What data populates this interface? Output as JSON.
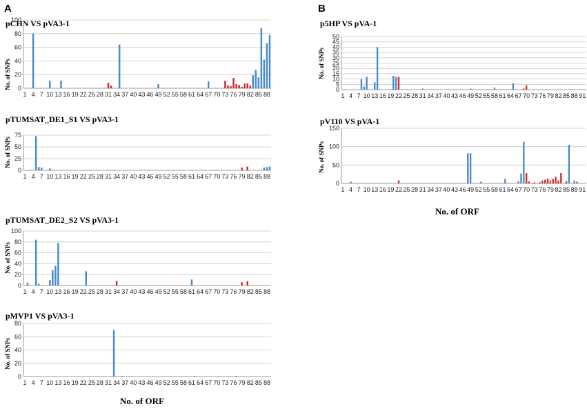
{
  "panel_labels": {
    "A": "A",
    "B": "B"
  },
  "x_axis_title": "No. of ORF",
  "colors": {
    "blue": "#4a8bc9",
    "red": "#d12a2a",
    "grid": "#c8c8c8"
  },
  "chart_data": [
    {
      "type": "bar",
      "title": "pCHN VS pVA3-1",
      "ylabel": "No. of SNPs",
      "ylim": [
        0,
        100
      ],
      "yticks": [
        0,
        20,
        40,
        60,
        80,
        100
      ],
      "xtick_labels": [
        "1",
        "4",
        "7",
        "10",
        "13",
        "16",
        "19",
        "22",
        "25",
        "28",
        "31",
        "34",
        "37",
        "40",
        "43",
        "46",
        "49",
        "52",
        "55",
        "58",
        "61",
        "64",
        "67",
        "70",
        "73",
        "76",
        "79",
        "82",
        "85",
        "88"
      ],
      "n_orf": 89,
      "bars": [
        {
          "orf": 4,
          "value": 80,
          "color": "blue"
        },
        {
          "orf": 10,
          "value": 11,
          "color": "blue"
        },
        {
          "orf": 14,
          "value": 11,
          "color": "blue"
        },
        {
          "orf": 30,
          "value": 1,
          "color": "blue"
        },
        {
          "orf": 31,
          "value": 8,
          "color": "red"
        },
        {
          "orf": 32,
          "value": 4,
          "color": "red"
        },
        {
          "orf": 35,
          "value": 64,
          "color": "blue"
        },
        {
          "orf": 49,
          "value": 6,
          "color": "blue"
        },
        {
          "orf": 67,
          "value": 10,
          "color": "blue"
        },
        {
          "orf": 73,
          "value": 11,
          "color": "red"
        },
        {
          "orf": 74,
          "value": 4,
          "color": "red"
        },
        {
          "orf": 75,
          "value": 3,
          "color": "red"
        },
        {
          "orf": 76,
          "value": 15,
          "color": "red"
        },
        {
          "orf": 77,
          "value": 6,
          "color": "red"
        },
        {
          "orf": 78,
          "value": 5,
          "color": "red"
        },
        {
          "orf": 79,
          "value": 2,
          "color": "red"
        },
        {
          "orf": 80,
          "value": 7,
          "color": "red"
        },
        {
          "orf": 81,
          "value": 7,
          "color": "red"
        },
        {
          "orf": 82,
          "value": 4,
          "color": "red"
        },
        {
          "orf": 83,
          "value": 19,
          "color": "blue"
        },
        {
          "orf": 84,
          "value": 27,
          "color": "blue"
        },
        {
          "orf": 85,
          "value": 16,
          "color": "blue"
        },
        {
          "orf": 86,
          "value": 88,
          "color": "blue"
        },
        {
          "orf": 87,
          "value": 42,
          "color": "blue"
        },
        {
          "orf": 88,
          "value": 66,
          "color": "blue"
        },
        {
          "orf": 89,
          "value": 78,
          "color": "blue"
        }
      ]
    },
    {
      "type": "bar",
      "title": "pTUMSAT_DE1_S1 VS pVA3-1",
      "ylabel": "No. of SNPs",
      "ylim": [
        0,
        75
      ],
      "yticks": [
        0,
        25,
        50,
        75
      ],
      "xtick_labels": [
        "1",
        "4",
        "7",
        "10",
        "13",
        "16",
        "19",
        "22",
        "25",
        "28",
        "31",
        "34",
        "37",
        "40",
        "43",
        "46",
        "49",
        "52",
        "55",
        "58",
        "61",
        "64",
        "67",
        "70",
        "73",
        "76",
        "79",
        "82",
        "85",
        "88"
      ],
      "n_orf": 89,
      "bars": [
        {
          "orf": 5,
          "value": 73,
          "color": "blue"
        },
        {
          "orf": 6,
          "value": 7,
          "color": "blue"
        },
        {
          "orf": 7,
          "value": 6,
          "color": "blue"
        },
        {
          "orf": 10,
          "value": 4,
          "color": "blue"
        },
        {
          "orf": 33,
          "value": 1,
          "color": "blue"
        },
        {
          "orf": 79,
          "value": 6,
          "color": "red"
        },
        {
          "orf": 81,
          "value": 8,
          "color": "red"
        },
        {
          "orf": 87,
          "value": 6,
          "color": "blue"
        },
        {
          "orf": 88,
          "value": 7,
          "color": "blue"
        },
        {
          "orf": 89,
          "value": 8,
          "color": "blue"
        }
      ]
    },
    {
      "type": "bar",
      "title": "pTUMSAT_DE2_S2 VS pVA3-1",
      "ylabel": "No. of SNPs",
      "ylim": [
        0,
        100
      ],
      "yticks": [
        0,
        20,
        40,
        60,
        80,
        100
      ],
      "xtick_labels": [
        "1",
        "4",
        "7",
        "10",
        "13",
        "16",
        "19",
        "22",
        "25",
        "28",
        "31",
        "34",
        "37",
        "40",
        "43",
        "46",
        "49",
        "52",
        "55",
        "58",
        "61",
        "64",
        "67",
        "70",
        "73",
        "76",
        "79",
        "82",
        "85",
        "88"
      ],
      "n_orf": 89,
      "bars": [
        {
          "orf": 2,
          "value": 5,
          "color": "blue"
        },
        {
          "orf": 5,
          "value": 84,
          "color": "blue"
        },
        {
          "orf": 6,
          "value": 3,
          "color": "blue"
        },
        {
          "orf": 10,
          "value": 10,
          "color": "blue"
        },
        {
          "orf": 11,
          "value": 28,
          "color": "blue"
        },
        {
          "orf": 12,
          "value": 36,
          "color": "blue"
        },
        {
          "orf": 13,
          "value": 78,
          "color": "blue"
        },
        {
          "orf": 23,
          "value": 26,
          "color": "blue"
        },
        {
          "orf": 34,
          "value": 8,
          "color": "red"
        },
        {
          "orf": 61,
          "value": 11,
          "color": "blue"
        },
        {
          "orf": 79,
          "value": 6,
          "color": "red"
        },
        {
          "orf": 81,
          "value": 8,
          "color": "red"
        }
      ]
    },
    {
      "type": "bar",
      "title": "pMVP1 VS pVA3-1",
      "ylabel": "No. of SNPs",
      "ylim": [
        0,
        80
      ],
      "yticks": [
        0,
        20,
        40,
        60,
        80
      ],
      "xtick_labels": [
        "1",
        "4",
        "7",
        "10",
        "13",
        "16",
        "19",
        "22",
        "25",
        "28",
        "31",
        "34",
        "37",
        "40",
        "43",
        "46",
        "49",
        "52",
        "55",
        "58",
        "61",
        "64",
        "67",
        "70",
        "73",
        "76",
        "79",
        "82",
        "85",
        "88"
      ],
      "n_orf": 89,
      "bars": [
        {
          "orf": 33,
          "value": 70,
          "color": "blue"
        },
        {
          "orf": 36,
          "value": 1,
          "color": "blue"
        },
        {
          "orf": 62,
          "value": 1,
          "color": "blue"
        },
        {
          "orf": 77,
          "value": 1,
          "color": "red"
        }
      ]
    },
    {
      "type": "bar",
      "title": "p5HP  VS pVA-1",
      "ylabel": "No. of SNPs",
      "ylim": [
        0,
        50
      ],
      "yticks": [
        0,
        5,
        10,
        15,
        20,
        25,
        30,
        35,
        40,
        45,
        50
      ],
      "xtick_labels": [
        "1",
        "4",
        "7",
        "10",
        "13",
        "16",
        "19",
        "22",
        "25",
        "28",
        "31",
        "34",
        "37",
        "40",
        "43",
        "46",
        "49",
        "52",
        "55",
        "58",
        "61",
        "64",
        "67",
        "70",
        "73",
        "76",
        "79",
        "82",
        "85",
        "88",
        "91"
      ],
      "n_orf": 92,
      "bars": [
        {
          "orf": 8,
          "value": 10,
          "color": "blue"
        },
        {
          "orf": 9,
          "value": 3,
          "color": "blue"
        },
        {
          "orf": 10,
          "value": 12,
          "color": "blue"
        },
        {
          "orf": 13,
          "value": 7,
          "color": "blue"
        },
        {
          "orf": 14,
          "value": 40,
          "color": "blue"
        },
        {
          "orf": 20,
          "value": 13,
          "color": "blue"
        },
        {
          "orf": 21,
          "value": 12,
          "color": "blue"
        },
        {
          "orf": 22,
          "value": 12,
          "color": "red"
        },
        {
          "orf": 31,
          "value": 1,
          "color": "blue"
        },
        {
          "orf": 49,
          "value": 1,
          "color": "blue"
        },
        {
          "orf": 58,
          "value": 2,
          "color": "blue"
        },
        {
          "orf": 65,
          "value": 6,
          "color": "blue"
        },
        {
          "orf": 69,
          "value": 1,
          "color": "red"
        },
        {
          "orf": 70,
          "value": 4,
          "color": "red"
        }
      ]
    },
    {
      "type": "bar",
      "title": "pV110 VS pVA-1",
      "ylabel": "No. of SNPs",
      "ylim": [
        0,
        150
      ],
      "yticks": [
        0,
        50,
        100,
        150
      ],
      "xtick_labels": [
        "1",
        "4",
        "7",
        "10",
        "13",
        "16",
        "19",
        "22",
        "25",
        "28",
        "31",
        "34",
        "37",
        "40",
        "43",
        "46",
        "49",
        "52",
        "55",
        "58",
        "61",
        "64",
        "67",
        "70",
        "73",
        "76",
        "79",
        "82",
        "85",
        "88",
        "91"
      ],
      "n_orf": 92,
      "bars": [
        {
          "orf": 4,
          "value": 5,
          "color": "blue"
        },
        {
          "orf": 22,
          "value": 8,
          "color": "red"
        },
        {
          "orf": 48,
          "value": 82,
          "color": "blue"
        },
        {
          "orf": 49,
          "value": 82,
          "color": "blue"
        },
        {
          "orf": 53,
          "value": 5,
          "color": "blue"
        },
        {
          "orf": 62,
          "value": 12,
          "color": "blue"
        },
        {
          "orf": 67,
          "value": 6,
          "color": "blue"
        },
        {
          "orf": 68,
          "value": 27,
          "color": "blue"
        },
        {
          "orf": 69,
          "value": 113,
          "color": "blue"
        },
        {
          "orf": 70,
          "value": 28,
          "color": "red"
        },
        {
          "orf": 71,
          "value": 5,
          "color": "red"
        },
        {
          "orf": 73,
          "value": 3,
          "color": "red"
        },
        {
          "orf": 75,
          "value": 3,
          "color": "red"
        },
        {
          "orf": 76,
          "value": 8,
          "color": "red"
        },
        {
          "orf": 77,
          "value": 10,
          "color": "red"
        },
        {
          "orf": 78,
          "value": 13,
          "color": "red"
        },
        {
          "orf": 79,
          "value": 8,
          "color": "red"
        },
        {
          "orf": 80,
          "value": 12,
          "color": "red"
        },
        {
          "orf": 81,
          "value": 18,
          "color": "red"
        },
        {
          "orf": 82,
          "value": 8,
          "color": "red"
        },
        {
          "orf": 83,
          "value": 28,
          "color": "red"
        },
        {
          "orf": 85,
          "value": 6,
          "color": "red"
        },
        {
          "orf": 86,
          "value": 105,
          "color": "blue"
        },
        {
          "orf": 88,
          "value": 8,
          "color": "blue"
        },
        {
          "orf": 89,
          "value": 5,
          "color": "blue"
        }
      ]
    }
  ]
}
